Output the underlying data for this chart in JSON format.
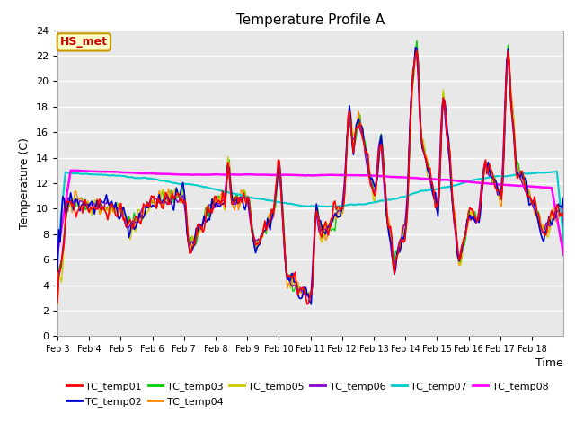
{
  "title": "Temperature Profile A",
  "xlabel": "Time",
  "ylabel": "Temperature (C)",
  "ylim": [
    0,
    24
  ],
  "background_color": "#e8e8e8",
  "annotation_text": "HS_met",
  "annotation_bg": "#ffffcc",
  "annotation_border": "#cc9900",
  "annotation_text_color": "#cc0000",
  "series_colors": {
    "TC_temp01": "#ff0000",
    "TC_temp02": "#0000cc",
    "TC_temp03": "#00cc00",
    "TC_temp04": "#ff8800",
    "TC_temp05": "#cccc00",
    "TC_temp06": "#8800cc",
    "TC_temp07": "#00cccc",
    "TC_temp08": "#ff00ff"
  },
  "xtick_labels": [
    "Feb 3",
    "Feb 4",
    "Feb 5",
    "Feb 6",
    "Feb 7",
    "Feb 8",
    "Feb 9",
    "Feb 10",
    "Feb 11",
    "Feb 12",
    "Feb 13",
    "Feb 14",
    "Feb 15",
    "Feb 16",
    "Feb 17",
    "Feb 18"
  ],
  "ytick_labels": [
    0,
    2,
    4,
    6,
    8,
    10,
    12,
    14,
    16,
    18,
    20,
    22,
    24
  ]
}
